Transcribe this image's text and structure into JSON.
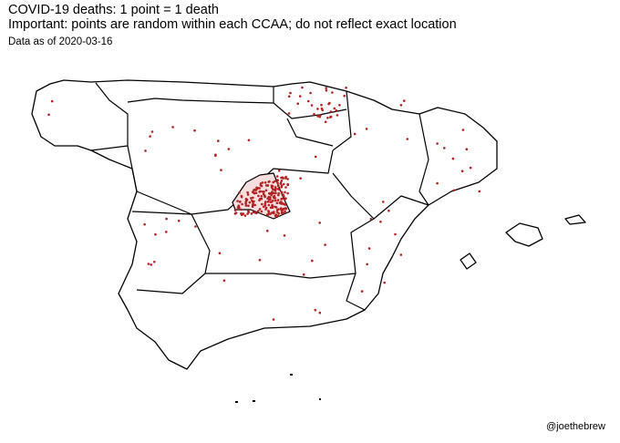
{
  "title": "COVID-19 deaths: 1 point = 1 death",
  "subtitle": "Important: points are random within each CCAA; do not reflect exact location",
  "note": "Data as of 2020-03-16",
  "caption": "@joethebrew",
  "colors": {
    "point": "#b22222",
    "border": "#000000",
    "land": "#ffffff"
  }
}
